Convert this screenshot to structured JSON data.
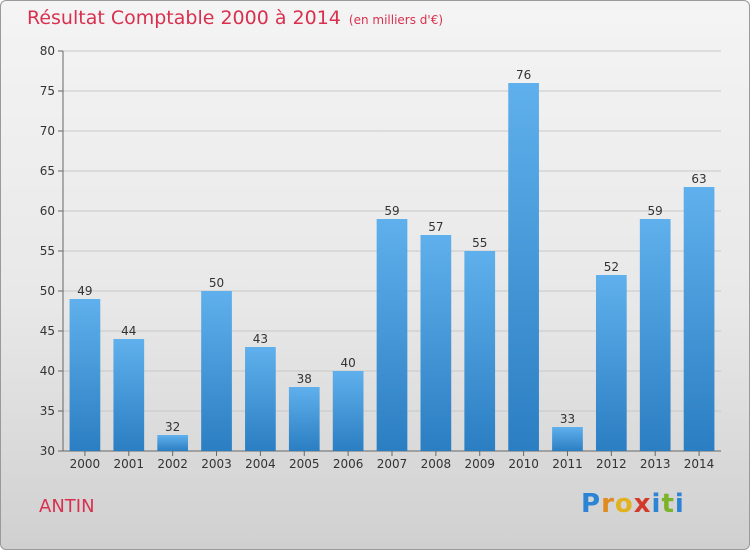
{
  "title": "Résultat Comptable 2000 à 2014",
  "unit": "(en milliers d'€)",
  "commune": "ANTIN",
  "logo": {
    "letters": [
      "P",
      "r",
      "o",
      "x",
      "i",
      "t",
      "i"
    ],
    "colors": [
      "#2c84d6",
      "#e08a20",
      "#e2b21e",
      "#d33a2a",
      "#2c84d6",
      "#7cb32a",
      "#2c84d6"
    ]
  },
  "colors": {
    "bar_light": "#5fb0ec",
    "bar_dark": "#2b7ec2",
    "title": "#d9304f",
    "grid": "#c8c8c8"
  },
  "chart_data": {
    "type": "bar",
    "title": "Résultat Comptable 2000 à 2014",
    "ylabel": "en milliers d'€",
    "xlabel": "",
    "categories": [
      "2000",
      "2001",
      "2002",
      "2003",
      "2004",
      "2005",
      "2006",
      "2007",
      "2008",
      "2009",
      "2010",
      "2011",
      "2012",
      "2013",
      "2014"
    ],
    "values": [
      49,
      44,
      32,
      50,
      43,
      38,
      40,
      59,
      57,
      55,
      76,
      33,
      52,
      59,
      63
    ],
    "ylim": [
      30,
      80
    ],
    "yticks": [
      30,
      35,
      40,
      45,
      50,
      55,
      60,
      65,
      70,
      75,
      80
    ],
    "grid": true
  }
}
